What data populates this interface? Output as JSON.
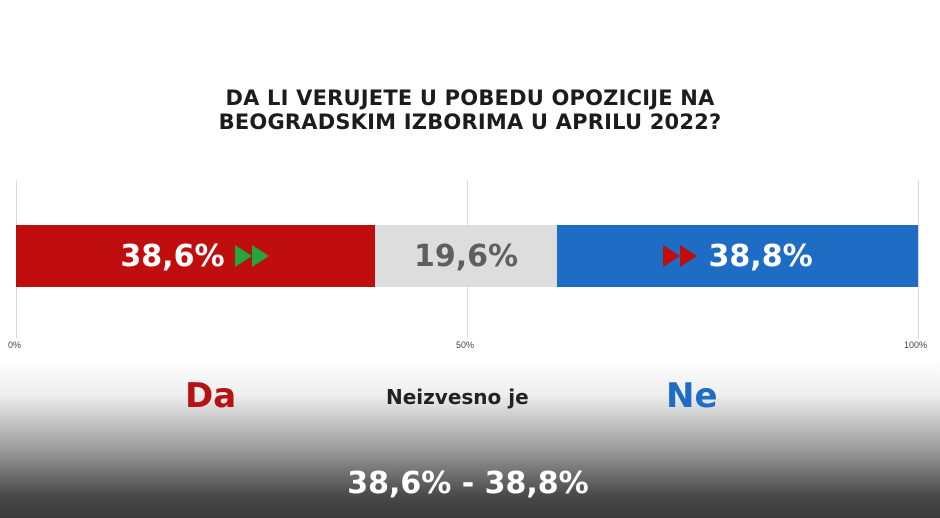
{
  "title_lines": [
    "DA LI VERUJETE U POBEDU OPOZICIJE NA",
    "BEOGRADSKIM IZBORIMA U APRILU 2022?"
  ],
  "chart_data": {
    "type": "bar",
    "orientation": "horizontal-stacked",
    "categories": [
      "Da",
      "Neizvesno je",
      "Ne"
    ],
    "values": [
      38.6,
      19.6,
      38.8
    ],
    "value_labels": [
      "38,6%",
      "19,6%",
      "38,8%"
    ],
    "colors": [
      "#c00d0d",
      "#dddddd",
      "#1f6cc4"
    ],
    "xlim": [
      0,
      100
    ],
    "ticks": [
      "0%",
      "50%",
      "100%"
    ],
    "grid": true
  },
  "legend": {
    "da": {
      "label": "Da",
      "color": "#b51313"
    },
    "neizvesno": {
      "label": "Neizvesno je",
      "color": "#222222"
    },
    "ne": {
      "label": "Ne",
      "color": "#1f6cc4"
    }
  },
  "arrows": {
    "da_color": "#22a83a",
    "ne_color": "#c00d0d"
  },
  "summary": "38,6% - 38,8%"
}
